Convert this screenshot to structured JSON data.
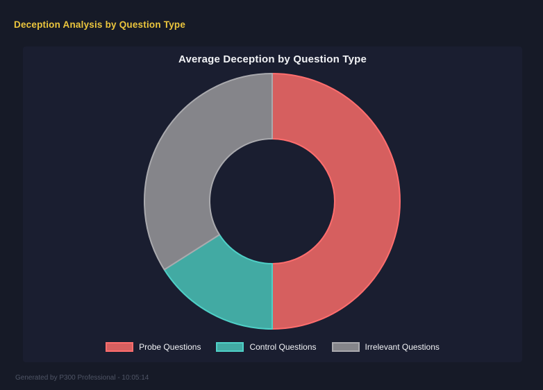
{
  "page": {
    "title": "Deception Analysis by Question Type",
    "footer": "Generated by P300 Professional - 10:05:14"
  },
  "colors": {
    "page_background": "#161a27",
    "panel_background": "#1a1e30",
    "page_title_text": "#ecc63d",
    "chart_title_text": "#f2f3f6",
    "legend_text": "#f2f3f6",
    "footer_text": "#4f5566"
  },
  "chart_data": {
    "type": "pie",
    "variant": "donut",
    "title": "Average Deception by Question Type",
    "categories": [
      "Probe Questions",
      "Control Questions",
      "Irrelevant Questions"
    ],
    "values": [
      50,
      16,
      34
    ],
    "values_note": "share of circle in percent, estimated from arc angles (no numeric labels shown)",
    "start_angle_deg": 0,
    "direction": "clockwise",
    "cutout_ratio": 0.48,
    "segment_fill_colors": [
      "#d65f5f",
      "#42aaa3",
      "#85858a"
    ],
    "segment_border_colors": [
      "#ff6e6e",
      "#4fd0c7",
      "#aaaaae"
    ],
    "legend_position": "bottom",
    "grid": false
  }
}
